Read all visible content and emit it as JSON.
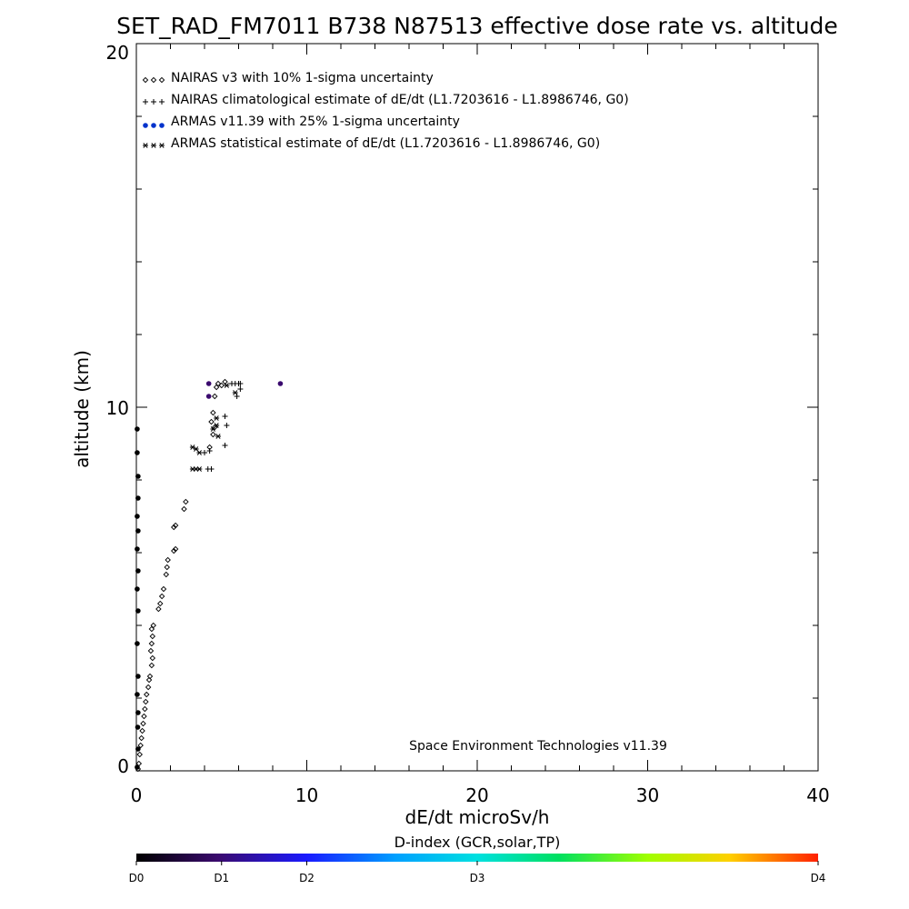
{
  "chart_data": {
    "type": "scatter",
    "title": "SET_RAD_FM7011  B738 N87513 effective dose rate vs. altitude",
    "xlabel": "dE/dt microSv/h",
    "ylabel": "altitude (km)",
    "xlim": [
      0,
      40
    ],
    "ylim": [
      0,
      20
    ],
    "x_ticks": [
      "0",
      "10",
      "20",
      "30",
      "40"
    ],
    "y_ticks": [
      "0",
      "10",
      "20"
    ],
    "legend_position": "top-left",
    "legend": [
      {
        "label": "NAIRAS v3 with 10% 1-sigma uncertainty",
        "marker": "diamond",
        "color": "#000000"
      },
      {
        "label": "NAIRAS climatological estimate of dE/dt (L1.7203616 - L1.8986746, G0)",
        "marker": "plus",
        "color": "#000000"
      },
      {
        "label": "ARMAS v11.39 with 25% 1-sigma uncertainty",
        "marker": "dot",
        "color": "#0033cc"
      },
      {
        "label": "ARMAS statistical estimate of dE/dt (L1.7203616 - L1.8986746, G0)",
        "marker": "asterisk",
        "color": "#000000"
      }
    ],
    "annotation": "Space Environment Technologies v11.39",
    "colorbar": {
      "title": "D-index (GCR,solar,TP)",
      "labels": [
        {
          "text": "D0",
          "value": 0
        },
        {
          "text": "D1",
          "value": 0.125
        },
        {
          "text": "D2",
          "value": 0.25
        },
        {
          "text": "D3",
          "value": 0.5
        },
        {
          "text": "D4",
          "value": 1.0
        }
      ]
    },
    "series": [
      {
        "marker": "diamond",
        "points": [
          [
            0.1,
            0.05
          ],
          [
            0.15,
            0.2
          ],
          [
            0.2,
            0.45
          ],
          [
            0.25,
            0.7
          ],
          [
            0.3,
            0.9
          ],
          [
            0.35,
            1.1
          ],
          [
            0.4,
            1.3
          ],
          [
            0.45,
            1.5
          ],
          [
            0.5,
            1.7
          ],
          [
            0.55,
            1.9
          ],
          [
            0.6,
            2.1
          ],
          [
            0.7,
            2.3
          ],
          [
            0.75,
            2.5
          ],
          [
            0.8,
            2.6
          ],
          [
            0.9,
            2.9
          ],
          [
            0.95,
            3.1
          ],
          [
            0.85,
            3.3
          ],
          [
            0.9,
            3.5
          ],
          [
            0.95,
            3.7
          ],
          [
            0.9,
            3.9
          ],
          [
            1.0,
            4.0
          ],
          [
            1.3,
            4.45
          ],
          [
            1.4,
            4.6
          ],
          [
            1.5,
            4.8
          ],
          [
            1.6,
            5.0
          ],
          [
            1.75,
            5.4
          ],
          [
            1.8,
            5.6
          ],
          [
            1.85,
            5.8
          ],
          [
            2.2,
            6.05
          ],
          [
            2.3,
            6.1
          ],
          [
            2.2,
            6.7
          ],
          [
            2.3,
            6.75
          ],
          [
            2.8,
            7.2
          ],
          [
            2.9,
            7.4
          ],
          [
            4.3,
            8.9
          ],
          [
            4.5,
            9.25
          ],
          [
            4.6,
            9.45
          ],
          [
            4.4,
            9.6
          ],
          [
            4.5,
            9.85
          ],
          [
            4.6,
            10.3
          ],
          [
            4.7,
            10.55
          ],
          [
            4.8,
            10.65
          ],
          [
            5.0,
            10.6
          ],
          [
            5.2,
            10.7
          ]
        ]
      },
      {
        "marker": "plus",
        "points": [
          [
            4.2,
            8.3
          ],
          [
            4.4,
            8.3
          ],
          [
            4.0,
            8.75
          ],
          [
            4.3,
            8.8
          ],
          [
            5.2,
            8.95
          ],
          [
            5.3,
            9.5
          ],
          [
            5.2,
            9.75
          ],
          [
            5.9,
            10.3
          ],
          [
            6.1,
            10.5
          ],
          [
            5.6,
            10.65
          ],
          [
            5.8,
            10.65
          ],
          [
            6.0,
            10.65
          ],
          [
            6.1,
            10.65
          ]
        ]
      },
      {
        "marker": "dot",
        "points": [
          [
            0.05,
            0.1
          ],
          [
            0.1,
            0.6
          ],
          [
            0.08,
            1.2
          ],
          [
            0.1,
            1.6
          ],
          [
            0.05,
            2.1
          ],
          [
            0.1,
            2.6
          ],
          [
            0.05,
            3.5
          ],
          [
            0.1,
            4.4
          ],
          [
            0.05,
            5.0
          ],
          [
            0.1,
            5.5
          ],
          [
            0.05,
            6.1
          ],
          [
            0.1,
            6.6
          ],
          [
            0.05,
            7.0
          ],
          [
            0.1,
            7.5
          ],
          [
            0.1,
            8.1
          ],
          [
            0.05,
            8.75
          ],
          [
            0.05,
            9.4
          ],
          [
            4.25,
            10.3
          ],
          [
            4.25,
            10.65
          ],
          [
            8.45,
            10.65
          ]
        ],
        "colors": [
          "#000000",
          "#000000",
          "#000000",
          "#000000",
          "#000000",
          "#000000",
          "#000000",
          "#000000",
          "#000000",
          "#000000",
          "#000000",
          "#000000",
          "#000000",
          "#000000",
          "#000000",
          "#000000",
          "#000000",
          "#3a0a6e",
          "#3a0a6e",
          "#3a0a6e"
        ]
      },
      {
        "marker": "asterisk",
        "points": [
          [
            3.3,
            8.3
          ],
          [
            3.5,
            8.3
          ],
          [
            3.7,
            8.3
          ],
          [
            3.3,
            8.9
          ],
          [
            3.5,
            8.85
          ],
          [
            3.7,
            8.75
          ],
          [
            4.5,
            9.4
          ],
          [
            4.7,
            9.5
          ],
          [
            4.7,
            9.7
          ],
          [
            4.8,
            9.2
          ],
          [
            5.8,
            10.4
          ],
          [
            5.3,
            10.6
          ]
        ]
      }
    ]
  }
}
